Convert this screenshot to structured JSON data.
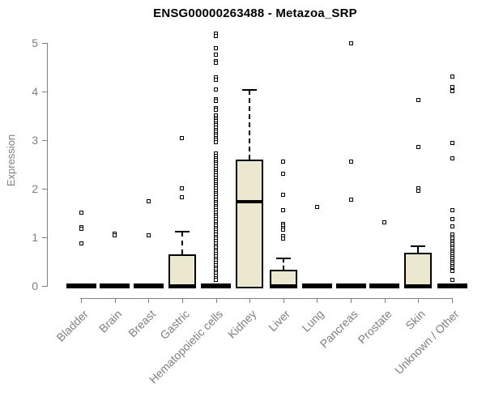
{
  "colors": {
    "axis": "#808080",
    "axis_text": "#7f7f7f",
    "title_text": "#000000",
    "box_fill": "#ece7cf",
    "box_border": "#000000",
    "point_fill": "#ffffff"
  },
  "chart_data": {
    "type": "boxplot",
    "title": "ENSG00000263488 - Metazoa_SRP",
    "xlabel": "",
    "ylabel": "Expression",
    "ylim": [
      0,
      5
    ],
    "yticks": [
      0,
      1,
      2,
      3,
      4,
      5
    ],
    "grid": false,
    "legend": "none",
    "categories": [
      "Bladder",
      "Brain",
      "Breast",
      "Gastric",
      "Hematopoietic cells",
      "Kidney",
      "Liver",
      "Lung",
      "Pancreas",
      "Prostate",
      "Skin",
      "Unknown / Other"
    ],
    "series": [
      {
        "category": "Bladder",
        "flat": true,
        "q1": 0,
        "median": 0,
        "q3": 0,
        "whisker_low": 0,
        "whisker_high": 0,
        "outliers": [
          1.5,
          1.21,
          1.17,
          0.88
        ]
      },
      {
        "category": "Brain",
        "flat": true,
        "q1": 0,
        "median": 0,
        "q3": 0,
        "whisker_low": 0,
        "whisker_high": 0,
        "outliers": [
          1.08,
          1.04
        ]
      },
      {
        "category": "Breast",
        "flat": true,
        "q1": 0,
        "median": 0,
        "q3": 0,
        "whisker_low": 0,
        "whisker_high": 0,
        "outliers": [
          1.74,
          1.04
        ]
      },
      {
        "category": "Gastric",
        "flat": false,
        "q1": 0,
        "median": 0,
        "q3": 0.65,
        "whisker_low": 0,
        "whisker_high": 1.12,
        "outliers": [
          3.04,
          2.01,
          1.83
        ]
      },
      {
        "category": "Hematopoietic cells",
        "flat": true,
        "q1": 0,
        "median": 0,
        "q3": 0,
        "whisker_low": 0,
        "whisker_high": 0,
        "outliers": [
          5.18,
          5.14,
          4.89,
          4.75,
          4.62,
          4.59,
          4.28,
          4.24,
          4.04,
          3.84,
          3.81,
          3.65,
          3.62,
          3.5,
          3.46,
          3.42,
          3.38,
          3.34,
          3.3,
          3.26,
          3.21,
          3.17,
          3.12,
          3.08,
          3.04,
          3.0,
          2.96,
          2.72,
          2.68,
          2.63,
          2.59,
          2.54,
          2.5,
          2.45,
          2.41,
          2.36,
          2.32,
          2.27,
          2.23,
          2.18,
          2.14,
          2.09,
          2.05,
          2.0,
          1.96,
          1.91,
          1.87,
          1.82,
          1.78,
          1.73,
          1.69,
          1.64,
          1.6,
          1.55,
          1.51,
          1.46,
          1.42,
          1.37,
          1.33,
          1.28,
          1.24,
          1.19,
          1.15,
          1.1,
          1.06,
          1.01,
          0.97,
          0.92,
          0.88,
          0.83,
          0.79,
          0.74,
          0.7,
          0.65,
          0.61,
          0.56,
          0.52,
          0.47,
          0.43,
          0.38,
          0.34,
          0.29,
          0.25,
          0.2,
          0.16,
          0.13
        ]
      },
      {
        "category": "Kidney",
        "flat": false,
        "q1": 0,
        "median": 1.73,
        "q3": 2.59,
        "whisker_low": 0,
        "whisker_high": 4.03,
        "outliers": []
      },
      {
        "category": "Liver",
        "flat": false,
        "q1": 0,
        "median": 0,
        "q3": 0.33,
        "whisker_low": 0,
        "whisker_high": 0.57,
        "outliers": [
          2.55,
          2.3,
          1.88,
          1.56,
          1.28,
          1.24,
          1.19,
          1.15,
          1.02,
          0.98
        ]
      },
      {
        "category": "Lung",
        "flat": true,
        "q1": 0,
        "median": 0,
        "q3": 0,
        "whisker_low": 0,
        "whisker_high": 0,
        "outliers": [
          1.63
        ]
      },
      {
        "category": "Pancreas",
        "flat": true,
        "q1": 0,
        "median": 0,
        "q3": 0,
        "whisker_low": 0,
        "whisker_high": 0,
        "outliers": [
          4.99,
          2.55,
          1.77
        ]
      },
      {
        "category": "Prostate",
        "flat": true,
        "q1": 0,
        "median": 0,
        "q3": 0,
        "whisker_low": 0,
        "whisker_high": 0,
        "outliers": [
          1.31
        ]
      },
      {
        "category": "Skin",
        "flat": false,
        "q1": 0,
        "median": 0,
        "q3": 0.68,
        "whisker_low": 0,
        "whisker_high": 0.82,
        "outliers": [
          3.82,
          2.85,
          2.0,
          1.95
        ]
      },
      {
        "category": "Unknown / Other",
        "flat": true,
        "q1": 0,
        "median": 0,
        "q3": 0,
        "whisker_low": 0,
        "whisker_high": 0,
        "outliers": [
          4.31,
          4.08,
          4.0,
          2.93,
          2.63,
          1.55,
          1.38,
          1.23,
          1.05,
          1.01,
          0.97,
          0.93,
          0.89,
          0.85,
          0.81,
          0.77,
          0.73,
          0.69,
          0.65,
          0.61,
          0.57,
          0.53,
          0.49,
          0.45,
          0.41,
          0.37,
          0.33,
          0.3,
          0.12
        ]
      }
    ]
  }
}
